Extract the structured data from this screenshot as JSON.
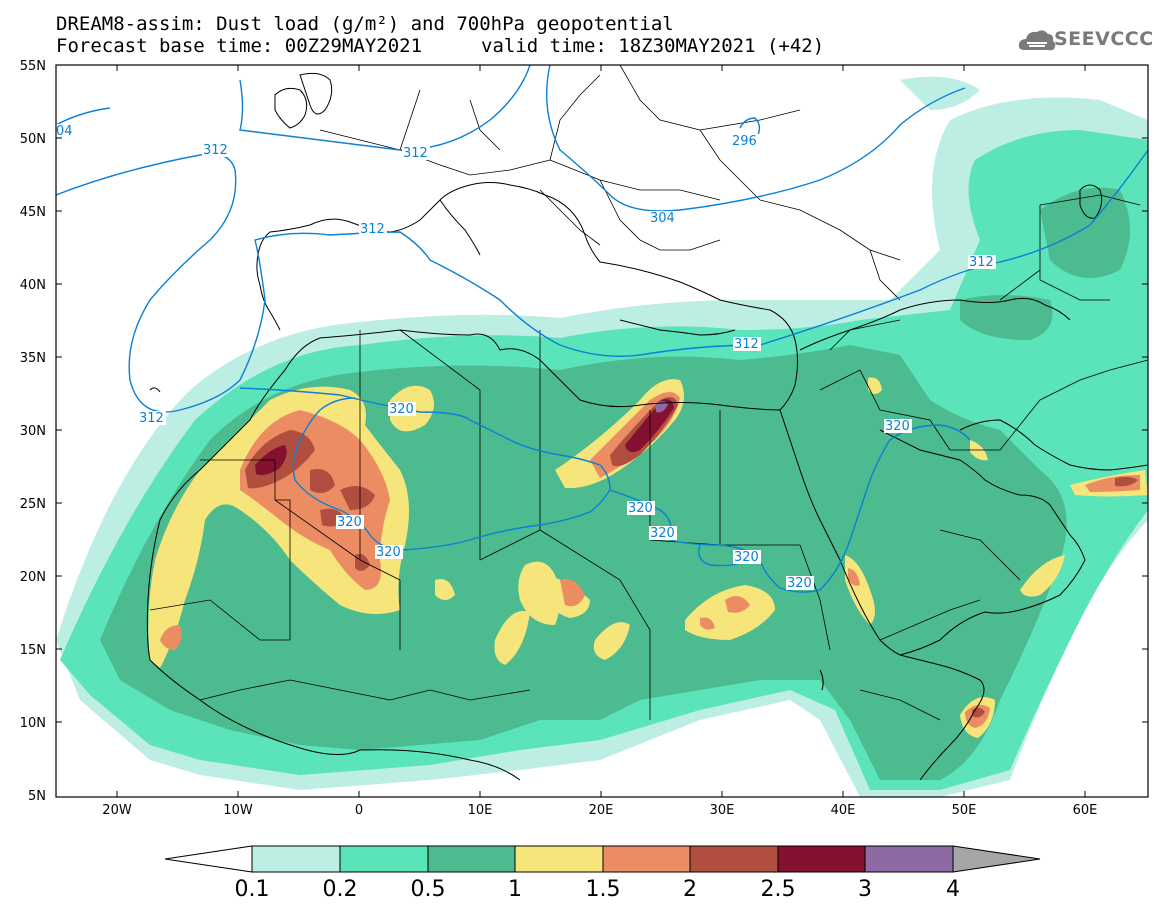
{
  "header": {
    "title_line1": "DREAM8-assim: Dust load (g/m²) and 700hPa geopotential",
    "title_line2_left": "Forecast base time: 00Z29MAY2021",
    "title_line2_right": "valid time: 18Z30MAY2021 (+42)",
    "logo_text": "SEEVCCC"
  },
  "map": {
    "lat_labels": [
      "55N",
      "50N",
      "45N",
      "40N",
      "35N",
      "30N",
      "25N",
      "20N",
      "15N",
      "10N",
      "5N"
    ],
    "lon_labels": [
      "20W",
      "10W",
      "0",
      "10E",
      "20E",
      "30E",
      "40E",
      "50E",
      "60E"
    ],
    "contour_labels": [
      "04",
      "312",
      "312",
      "312",
      "296",
      "304",
      "312",
      "312",
      "312",
      "320",
      "320",
      "320",
      "320",
      "320",
      "320",
      "320"
    ],
    "contour_color": "#0a80d6"
  },
  "legend": {
    "levels": [
      "0.1",
      "0.2",
      "0.5",
      "1",
      "1.5",
      "2",
      "2.5",
      "3",
      "4"
    ],
    "colors": [
      "#bdeee4",
      "#5be3ba",
      "#4cbb8f",
      "#f6e57b",
      "#ec8c62",
      "#b04f3f",
      "#85102f",
      "#8d6aa3",
      "#a6a6a6"
    ]
  },
  "colors": {
    "dust_01": "#bdeee4",
    "dust_02": "#5be3ba",
    "dust_05": "#4cbb8f",
    "dust_1": "#f6e57b",
    "dust_15": "#ec8c62",
    "dust_2": "#b04f3f",
    "dust_25": "#85102f",
    "dust_3": "#8d6aa3",
    "geopotential": "#0a80d6"
  }
}
